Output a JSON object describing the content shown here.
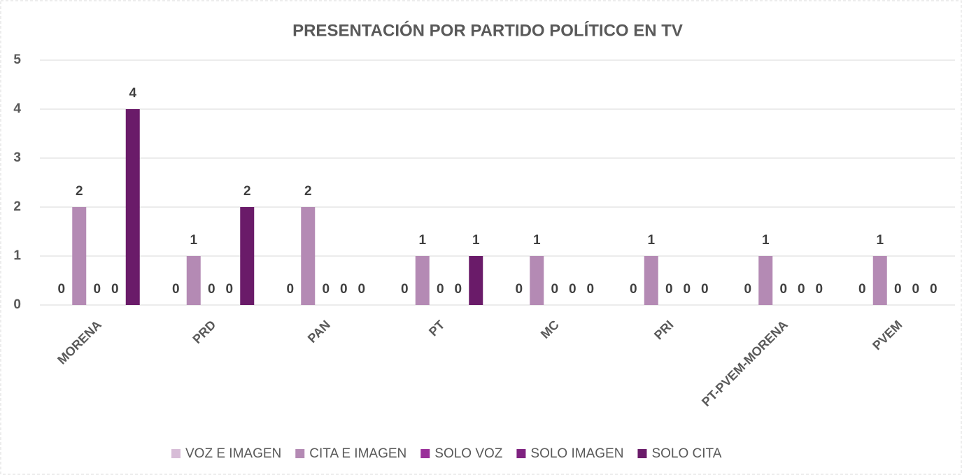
{
  "chart_data": {
    "type": "bar",
    "title": "PRESENTACIÓN POR PARTIDO POLÍTICO EN TV",
    "categories": [
      "MORENA",
      "PRD",
      "PAN",
      "PT",
      "MC",
      "PRI",
      "PT-PVEM-MORENA",
      "PVEM"
    ],
    "series": [
      {
        "name": "VOZ E IMAGEN",
        "color": "#d7bcd7",
        "values": [
          0,
          0,
          0,
          0,
          0,
          0,
          0,
          0
        ]
      },
      {
        "name": "CITA E IMAGEN",
        "color": "#b48ab4",
        "values": [
          2,
          1,
          2,
          1,
          1,
          1,
          1,
          1
        ]
      },
      {
        "name": "SOLO VOZ",
        "color": "#992f99",
        "values": [
          0,
          0,
          0,
          0,
          0,
          0,
          0,
          0
        ]
      },
      {
        "name": "SOLO IMAGEN",
        "color": "#7f2280",
        "values": [
          0,
          0,
          0,
          0,
          0,
          0,
          0,
          0
        ]
      },
      {
        "name": "SOLO CITA",
        "color": "#6a1b69",
        "values": [
          4,
          2,
          0,
          1,
          0,
          0,
          0,
          0
        ]
      }
    ],
    "ylim": [
      0,
      5
    ],
    "yticks": [
      0,
      1,
      2,
      3,
      4,
      5
    ],
    "grid": true,
    "legend": "bottom"
  }
}
